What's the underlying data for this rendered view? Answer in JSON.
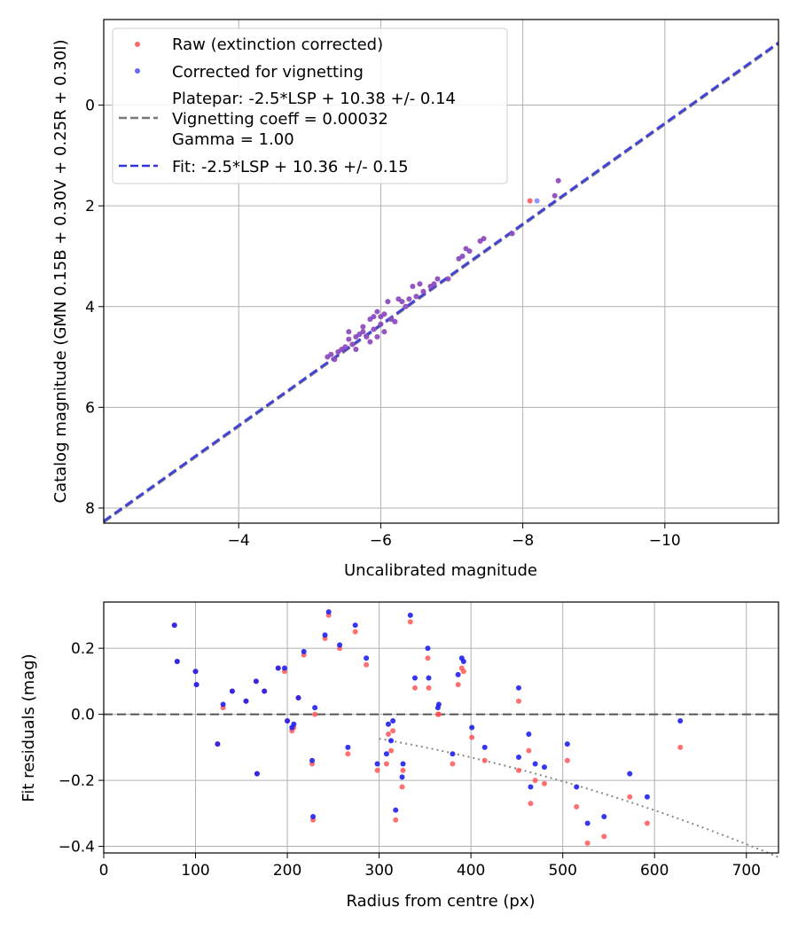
{
  "chart_data": [
    {
      "type": "scatter",
      "name": "calibration",
      "xlabel": "Uncalibrated magnitude",
      "ylabel": "Catalog magnitude (GMN 0.15B + 0.30V + 0.25R + 0.30I)",
      "xlim": [
        -2.1,
        -11.6
      ],
      "ylim": [
        8.3,
        -1.7
      ],
      "xticks": [
        -4,
        -6,
        -8,
        -10
      ],
      "xtick_labels": [
        "−4",
        "−6",
        "−8",
        "−10"
      ],
      "yticks": [
        0,
        2,
        4,
        6,
        8
      ],
      "ytick_labels": [
        "0",
        "2",
        "4",
        "6",
        "8"
      ],
      "grid": true,
      "legend_position": "upper-left",
      "legend": [
        {
          "label": "Raw (extinction corrected)",
          "kind": "point",
          "color": "#ff4d4d"
        },
        {
          "label": "Corrected for vignetting",
          "kind": "point",
          "color": "#4d4dff"
        },
        {
          "label": "Platepar: -2.5*LSP + 10.38 +/- 0.14",
          "label2": "Vignetting coeff = 0.00032",
          "label3": "Gamma = 1.00",
          "kind": "dash",
          "color": "#777777"
        },
        {
          "label": "Fit: -2.5*LSP + 10.36 +/- 0.15",
          "kind": "dash",
          "color": "#3333dd"
        }
      ],
      "lines": [
        {
          "name": "platepar",
          "slope": 1.0,
          "intercept": 10.38,
          "color": "#777777"
        },
        {
          "name": "fit",
          "slope": 1.0,
          "intercept": 10.36,
          "color": "#3333dd"
        }
      ],
      "series": [
        {
          "name": "Raw (extinction corrected)",
          "color": "#ff4d4d",
          "x": [
            -8.5,
            -8.45,
            -8.1,
            -7.85,
            -7.45,
            -7.4,
            -7.25,
            -7.2,
            -7.15,
            -7.1,
            -6.95,
            -6.8,
            -6.75,
            -6.7,
            -6.6,
            -6.55,
            -6.5,
            -6.45,
            -6.4,
            -6.3,
            -6.25,
            -6.1,
            -6.05,
            -6.0,
            -5.95,
            -5.9,
            -5.85,
            -5.8,
            -5.75,
            -5.7,
            -5.65,
            -5.6,
            -5.55,
            -5.5,
            -5.45,
            -5.4,
            -5.35,
            -5.3,
            -5.25,
            -6.2,
            -6.35,
            -5.95,
            -5.85,
            -5.75,
            -6.15,
            -5.65,
            -5.55,
            -6.05,
            -5.9,
            -6.0
          ],
          "y": [
            1.5,
            1.8,
            1.9,
            2.55,
            2.65,
            2.7,
            2.9,
            2.85,
            3.0,
            3.05,
            3.45,
            3.45,
            3.55,
            3.6,
            3.7,
            3.55,
            3.8,
            3.6,
            3.85,
            3.9,
            3.85,
            3.9,
            4.15,
            4.35,
            4.1,
            4.2,
            4.25,
            4.6,
            4.5,
            4.55,
            4.6,
            4.75,
            4.5,
            4.8,
            4.85,
            4.9,
            5.05,
            4.95,
            5.0,
            4.3,
            4.0,
            4.6,
            4.7,
            4.4,
            4.25,
            4.85,
            4.65,
            4.5,
            4.45,
            4.2
          ]
        },
        {
          "name": "Corrected for vignetting",
          "color": "#4d4dff",
          "x": [
            -8.5,
            -8.45,
            -8.2,
            -7.85,
            -7.45,
            -7.4,
            -7.25,
            -7.2,
            -7.15,
            -7.1,
            -6.95,
            -6.8,
            -6.75,
            -6.7,
            -6.6,
            -6.55,
            -6.5,
            -6.45,
            -6.4,
            -6.3,
            -6.25,
            -6.1,
            -6.05,
            -6.0,
            -5.95,
            -5.9,
            -5.85,
            -5.8,
            -5.75,
            -5.7,
            -5.65,
            -5.6,
            -5.55,
            -5.5,
            -5.45,
            -5.4,
            -5.35,
            -5.3,
            -5.25,
            -6.2,
            -6.35,
            -5.95,
            -5.85,
            -5.75,
            -6.15,
            -5.65,
            -5.55,
            -6.05,
            -5.9,
            -6.0
          ],
          "y": [
            1.5,
            1.8,
            1.9,
            2.55,
            2.65,
            2.7,
            2.9,
            2.85,
            3.0,
            3.05,
            3.45,
            3.45,
            3.55,
            3.6,
            3.7,
            3.55,
            3.8,
            3.6,
            3.85,
            3.9,
            3.85,
            3.9,
            4.15,
            4.35,
            4.1,
            4.2,
            4.25,
            4.6,
            4.5,
            4.55,
            4.6,
            4.75,
            4.5,
            4.8,
            4.85,
            4.9,
            5.05,
            4.95,
            5.0,
            4.3,
            4.0,
            4.6,
            4.7,
            4.4,
            4.25,
            4.85,
            4.65,
            4.5,
            4.45,
            4.2
          ]
        }
      ]
    },
    {
      "type": "scatter",
      "name": "residuals",
      "xlabel": "Radius from centre (px)",
      "ylabel": "Fit residuals (mag)",
      "xlim": [
        0,
        735
      ],
      "ylim": [
        -0.42,
        0.34
      ],
      "xticks": [
        0,
        100,
        200,
        300,
        400,
        500,
        600,
        700
      ],
      "xtick_labels": [
        "0",
        "100",
        "200",
        "300",
        "400",
        "500",
        "600",
        "700"
      ],
      "yticks": [
        -0.4,
        -0.2,
        0.0,
        0.2
      ],
      "ytick_labels": [
        "−0.4",
        "−0.2",
        "0.0",
        "0.2"
      ],
      "grid": true,
      "zero_line": 0,
      "vignetting_curve": {
        "coeff": 0.00032,
        "color": "#888888"
      },
      "series": [
        {
          "name": "Raw (extinction corrected)",
          "color": "#ff4d4d",
          "x": [
            77,
            80,
            100,
            101,
            124,
            130,
            140,
            155,
            166,
            167,
            175,
            190,
            197,
            200,
            205,
            207,
            212,
            218,
            227,
            228,
            241,
            245,
            257,
            266,
            274,
            286,
            298,
            308,
            310,
            313,
            315,
            318,
            325,
            326,
            334,
            339,
            353,
            354,
            365,
            380,
            386,
            390,
            392,
            401,
            415,
            452,
            452,
            463,
            465,
            470,
            480,
            505,
            515,
            527,
            545,
            573,
            592,
            628,
            364,
            230
          ],
          "x_note": "radius px",
          "y": [
            0.27,
            0.16,
            0.13,
            0.09,
            -0.09,
            0.02,
            0.07,
            0.04,
            0.1,
            -0.18,
            0.07,
            0.14,
            0.13,
            -0.02,
            -0.05,
            -0.04,
            0.05,
            0.18,
            -0.15,
            -0.32,
            0.23,
            0.3,
            0.2,
            -0.12,
            0.25,
            0.15,
            -0.17,
            -0.15,
            -0.06,
            -0.11,
            -0.05,
            -0.32,
            -0.22,
            -0.17,
            0.28,
            0.08,
            0.17,
            0.08,
            0.0,
            -0.15,
            0.09,
            0.14,
            0.13,
            -0.07,
            -0.14,
            0.04,
            -0.17,
            -0.11,
            -0.27,
            -0.2,
            -0.21,
            -0.14,
            -0.28,
            -0.39,
            -0.37,
            -0.25,
            -0.33,
            -0.1,
            0.0,
            -0.0
          ]
        },
        {
          "name": "Corrected for vignetting",
          "color": "#2020ee",
          "x": [
            77,
            80,
            100,
            101,
            124,
            130,
            140,
            155,
            166,
            167,
            175,
            190,
            197,
            200,
            205,
            207,
            212,
            218,
            227,
            228,
            241,
            245,
            257,
            266,
            274,
            286,
            298,
            308,
            310,
            313,
            315,
            318,
            325,
            326,
            334,
            339,
            353,
            354,
            365,
            380,
            386,
            390,
            392,
            401,
            415,
            452,
            452,
            463,
            465,
            470,
            480,
            505,
            515,
            527,
            545,
            573,
            592,
            628,
            364,
            230
          ],
          "y": [
            0.27,
            0.16,
            0.13,
            0.09,
            -0.09,
            0.03,
            0.07,
            0.04,
            0.1,
            -0.18,
            0.07,
            0.14,
            0.14,
            -0.02,
            -0.04,
            -0.03,
            0.05,
            0.19,
            -0.14,
            -0.31,
            0.24,
            0.31,
            0.21,
            -0.1,
            0.27,
            0.17,
            -0.15,
            -0.12,
            -0.03,
            -0.08,
            -0.02,
            -0.29,
            -0.19,
            -0.15,
            0.3,
            0.11,
            0.2,
            0.11,
            0.03,
            -0.12,
            0.12,
            0.17,
            0.16,
            -0.04,
            -0.1,
            0.08,
            -0.13,
            -0.06,
            -0.22,
            -0.15,
            -0.16,
            -0.09,
            -0.22,
            -0.33,
            -0.31,
            -0.18,
            -0.25,
            -0.02,
            0.02,
            0.02
          ]
        }
      ]
    }
  ]
}
